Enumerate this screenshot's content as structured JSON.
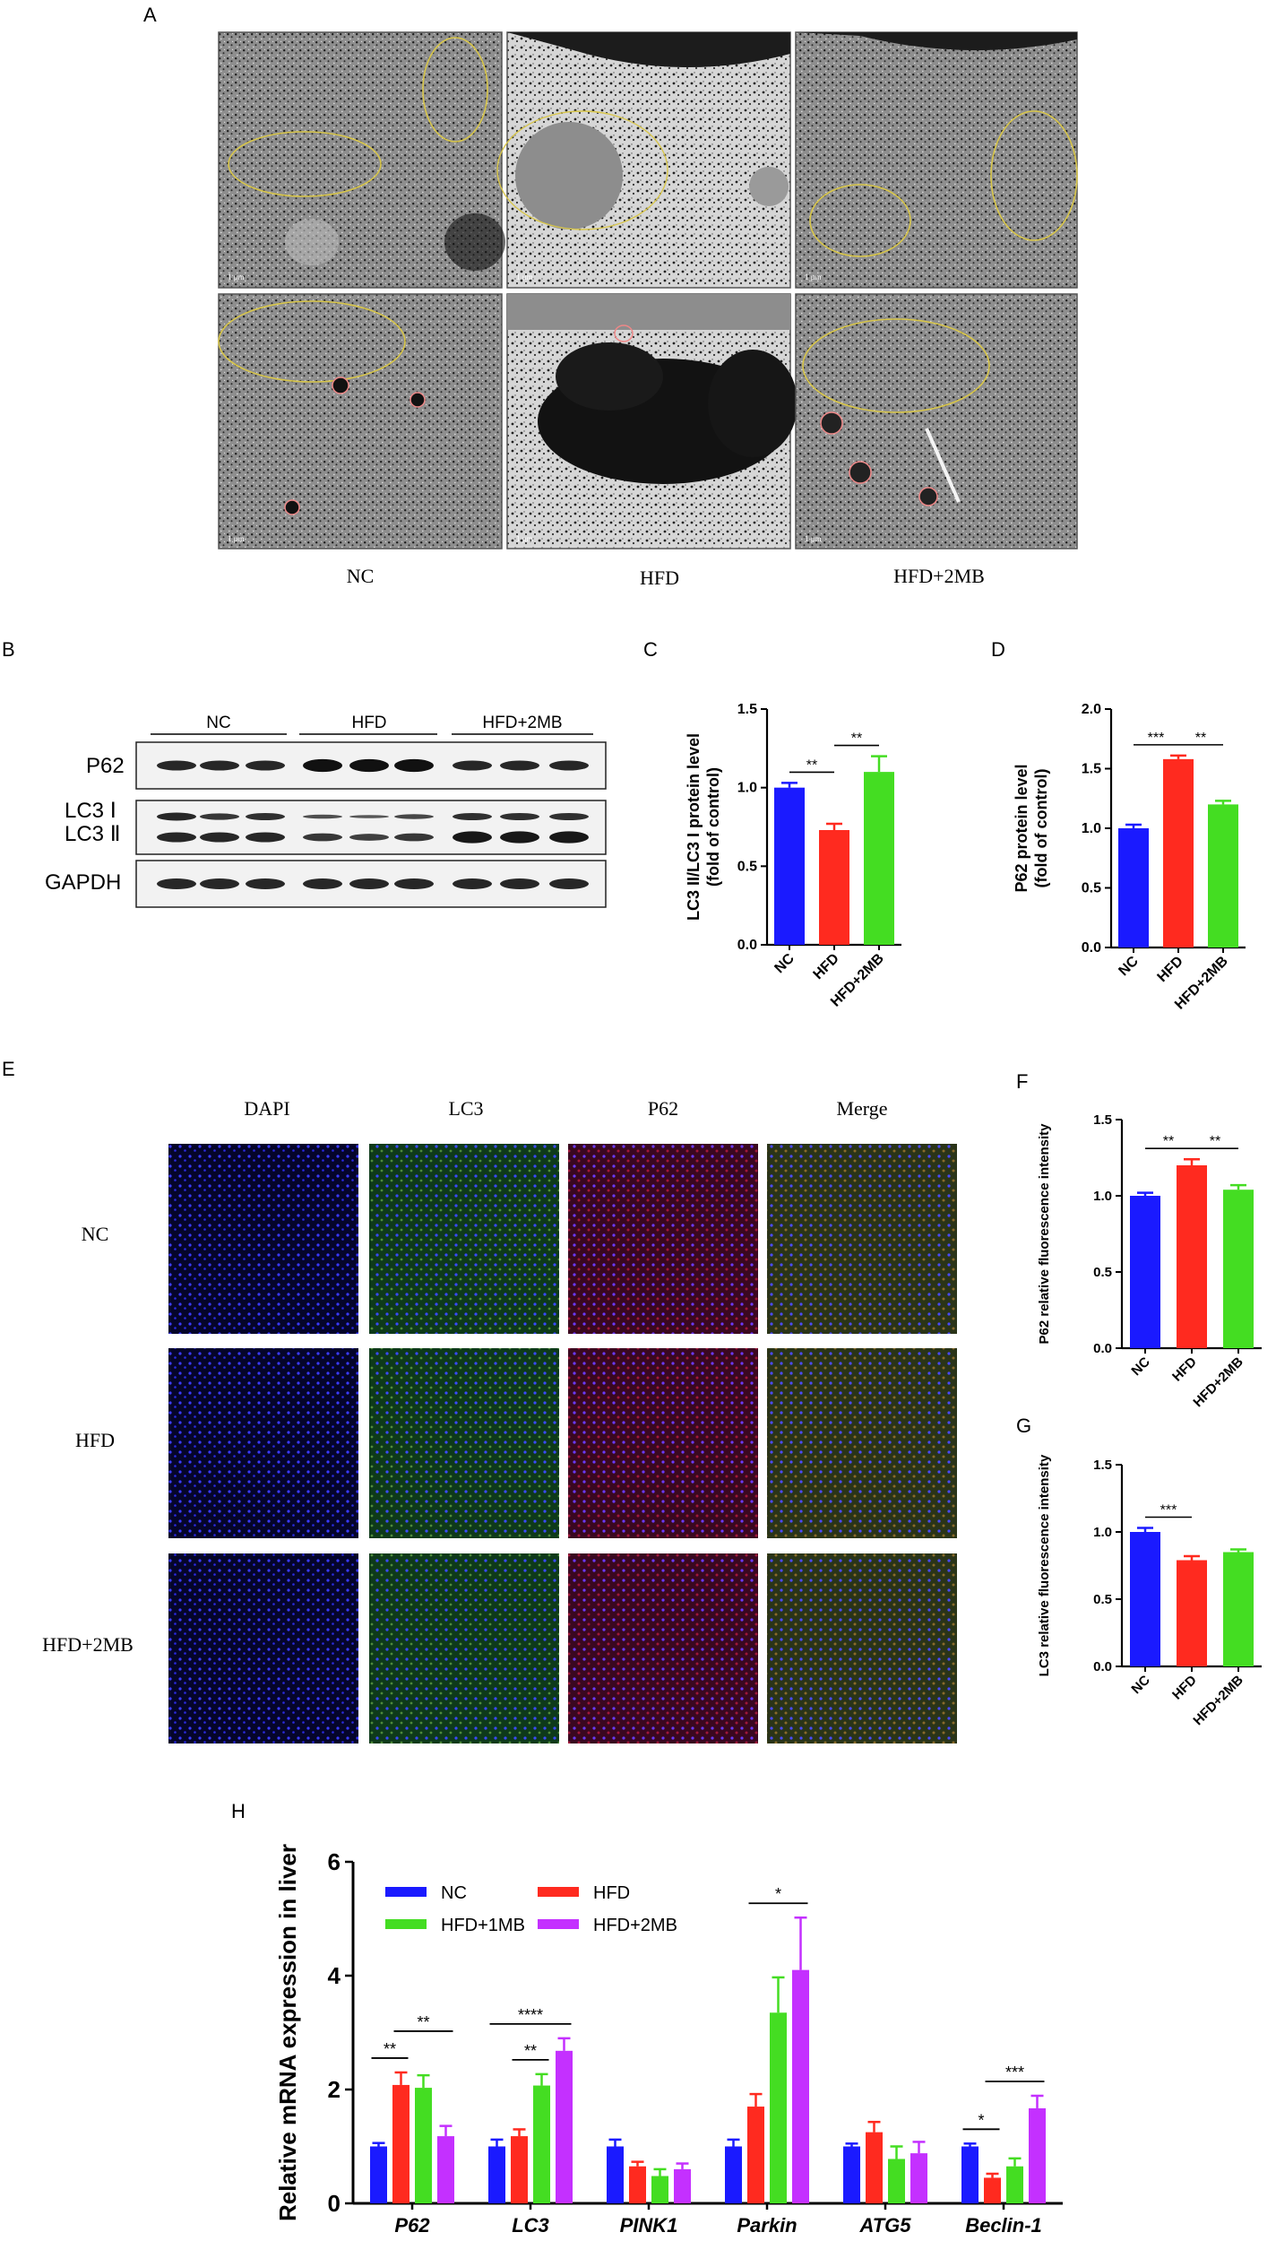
{
  "panel_labels": {
    "a": "A",
    "b": "B",
    "c": "C",
    "d": "D",
    "e": "E",
    "f": "F",
    "g": "G",
    "h": "H"
  },
  "tem": {
    "groups": [
      "NC",
      "HFD",
      "HFD+2MB"
    ],
    "scale_bar": "1 μm"
  },
  "western": {
    "groups": [
      "NC",
      "HFD",
      "HFD+2MB"
    ],
    "bands": [
      "P62",
      "LC3 Ⅰ",
      "LC3 Ⅱ",
      "GAPDH"
    ]
  },
  "if_panel": {
    "channels": [
      "DAPI",
      "LC3",
      "P62",
      "Merge"
    ],
    "rows": [
      "NC",
      "HFD",
      "HFD+2MB"
    ]
  },
  "colors": {
    "NC": "#1a1aff",
    "HFD": "#ff2a1f",
    "HFD+1MB": "#44dd22",
    "HFD+2MB": "#c430ff"
  },
  "chart_data": [
    {
      "panel": "C",
      "type": "bar",
      "ylabel": "LC3 II/LC3 I protein level (fold of control)",
      "ylabel_lines": [
        "LC3 II/LC3 I protein level",
        "(fold of control)"
      ],
      "categories": [
        "NC",
        "HFD",
        "HFD+2MB"
      ],
      "values": [
        1.0,
        0.73,
        1.1
      ],
      "errors": [
        0.03,
        0.04,
        0.1
      ],
      "ylim": [
        0,
        1.5
      ],
      "yticks": [
        "0.0",
        "0.5",
        "1.0",
        "1.5"
      ],
      "significance": [
        {
          "from": 0,
          "to": 1,
          "label": "**"
        },
        {
          "from": 1,
          "to": 2,
          "label": "**"
        }
      ]
    },
    {
      "panel": "D",
      "type": "bar",
      "ylabel": "P62 protein level (fold of control)",
      "ylabel_lines": [
        "P62 protein level",
        "(fold of control)"
      ],
      "categories": [
        "NC",
        "HFD",
        "HFD+2MB"
      ],
      "values": [
        1.0,
        1.58,
        1.2
      ],
      "errors": [
        0.03,
        0.03,
        0.03
      ],
      "ylim": [
        0,
        2.0
      ],
      "yticks": [
        "0.0",
        "0.5",
        "1.0",
        "1.5",
        "2.0"
      ],
      "significance": [
        {
          "from": 0,
          "to": 1,
          "label": "***"
        },
        {
          "from": 1,
          "to": 2,
          "label": "**"
        }
      ]
    },
    {
      "panel": "F",
      "type": "bar",
      "ylabel": "P62 relative fluorescence intensity",
      "ylabel_lines": [
        "P62 relative fluorescence intensity"
      ],
      "categories": [
        "NC",
        "HFD",
        "HFD+2MB"
      ],
      "values": [
        1.0,
        1.2,
        1.04
      ],
      "errors": [
        0.02,
        0.04,
        0.03
      ],
      "ylim": [
        0,
        1.5
      ],
      "yticks": [
        "0.0",
        "0.5",
        "1.0",
        "1.5"
      ],
      "significance": [
        {
          "from": 0,
          "to": 1,
          "label": "**"
        },
        {
          "from": 1,
          "to": 2,
          "label": "**"
        }
      ]
    },
    {
      "panel": "G",
      "type": "bar",
      "ylabel": "LC3 relative fluorescence intensity",
      "ylabel_lines": [
        "LC3 relative fluorescence intensity"
      ],
      "categories": [
        "NC",
        "HFD",
        "HFD+2MB"
      ],
      "values": [
        1.0,
        0.79,
        0.85
      ],
      "errors": [
        0.03,
        0.03,
        0.02
      ],
      "ylim": [
        0,
        1.5
      ],
      "yticks": [
        "0.0",
        "0.5",
        "1.0",
        "1.5"
      ],
      "significance": [
        {
          "from": 0,
          "to": 1,
          "label": "***"
        }
      ]
    },
    {
      "panel": "H",
      "type": "bar",
      "ylabel": "Relative mRNA expression in liver",
      "categories": [
        "P62",
        "LC3",
        "PINK1",
        "Parkin",
        "ATG5",
        "Beclin-1"
      ],
      "ylim": [
        0,
        6
      ],
      "yticks": [
        "0",
        "2",
        "4",
        "6"
      ],
      "legend": "top-left",
      "series": [
        {
          "name": "NC",
          "values": [
            1.0,
            1.0,
            1.0,
            1.0,
            1.0,
            1.0
          ],
          "errors": [
            0.06,
            0.12,
            0.12,
            0.12,
            0.05,
            0.05
          ]
        },
        {
          "name": "HFD",
          "values": [
            2.08,
            1.18,
            0.65,
            1.7,
            1.25,
            0.45
          ],
          "errors": [
            0.22,
            0.12,
            0.08,
            0.22,
            0.18,
            0.07
          ]
        },
        {
          "name": "HFD+1MB",
          "values": [
            2.03,
            2.07,
            0.48,
            3.35,
            0.78,
            0.65
          ],
          "errors": [
            0.22,
            0.2,
            0.12,
            0.62,
            0.22,
            0.14
          ]
        },
        {
          "name": "HFD+2MB",
          "values": [
            1.18,
            2.68,
            0.6,
            4.1,
            0.88,
            1.67
          ],
          "errors": [
            0.18,
            0.22,
            0.1,
            0.92,
            0.2,
            0.22
          ]
        }
      ],
      "significance": [
        {
          "cat": 0,
          "from": 0,
          "to": 1,
          "label": "**"
        },
        {
          "cat": 0,
          "from": 1,
          "to": 3,
          "label": "**"
        },
        {
          "cat": 1,
          "from": 1,
          "to": 2,
          "label": "**"
        },
        {
          "cat": 1,
          "from": 0,
          "to": 3,
          "label": "****"
        },
        {
          "cat": 3,
          "from": 1,
          "to": 3,
          "label": "*"
        },
        {
          "cat": 5,
          "from": 0,
          "to": 1,
          "label": "*"
        },
        {
          "cat": 5,
          "from": 1,
          "to": 3,
          "label": "***"
        }
      ]
    }
  ]
}
